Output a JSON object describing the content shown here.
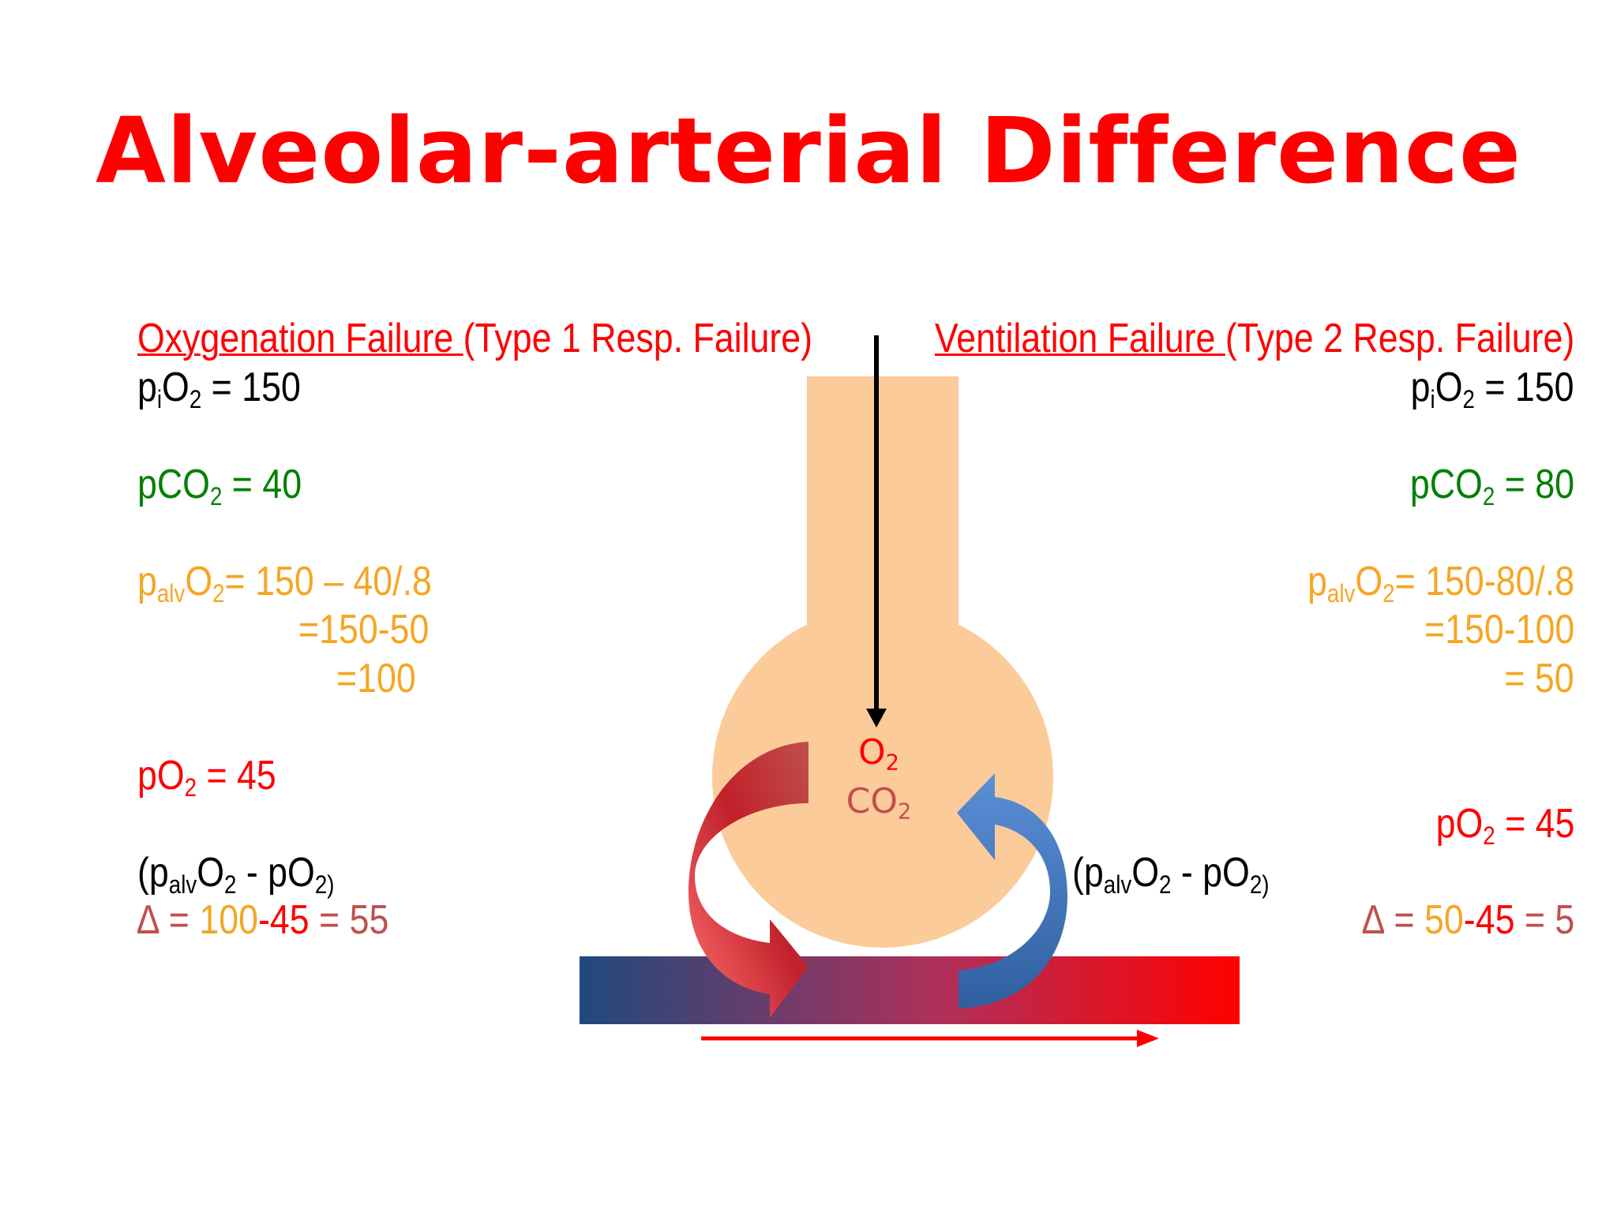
{
  "title": "Alveolar-arterial Difference",
  "colors": {
    "title": "#ff0000",
    "pco2": "#008000",
    "palvo2": "#f5a623",
    "po2": "#ff0000",
    "delta_symbol": "#c0504d",
    "alveolus": "#fccb9a",
    "vessel_start": "#1f497d",
    "vessel_end": "#ff0000"
  },
  "left": {
    "header_underlined": "Oxygenation Failure ",
    "header_rest": "(Type 1 Resp. Failure)",
    "pio2": {
      "p": "p",
      "sub": "i",
      "o": "O",
      "two": "2",
      "value": " = 150"
    },
    "pco2": {
      "pre": "pCO",
      "two": "2",
      "value": " = 40"
    },
    "palvo2": {
      "p": "p",
      "alv": "alv",
      "o": "O",
      "two": "2",
      "value": "= 150 – 40/.8",
      "line2": "=150-50",
      "line3": "=100"
    },
    "po2": {
      "pre": "pO",
      "two": "2",
      "value": " = 45"
    },
    "diff": {
      "open": "(p",
      "alv": "alv",
      "o": "O",
      "two": "2",
      "mid": " - pO",
      "two2": "2)"
    },
    "delta": {
      "sym": "∆",
      "eq": " = ",
      "a": "100",
      "dash": "-",
      "b": "45",
      "res": " = 55"
    }
  },
  "right": {
    "header_underlined": "Ventilation Failure ",
    "header_rest": "(Type 2 Resp. Failure)",
    "pio2": {
      "p": "p",
      "sub": "i",
      "o": "O",
      "two": "2",
      "value": " = 150"
    },
    "pco2": {
      "pre": "pCO",
      "two": "2",
      "value": " = 80"
    },
    "palvo2": {
      "p": "p",
      "alv": "alv",
      "o": "O",
      "two": "2",
      "value": "= 150-80/.8",
      "line2": "=150-100",
      "line3": "= 50"
    },
    "po2": {
      "pre": "pO",
      "two": "2",
      "value": " = 45"
    },
    "delta": {
      "sym": "∆",
      "eq": " = ",
      "a": "50",
      "dash": "-",
      "b": "45",
      "res": " = 5"
    }
  },
  "center": {
    "diff": {
      "open": "(p",
      "alv": "alv",
      "o": "O",
      "two": "2",
      "mid": " - pO",
      "two2": "2)"
    },
    "o2": {
      "o": "O",
      "two": "2"
    },
    "co2": {
      "co": "CO",
      "two": "2"
    }
  }
}
